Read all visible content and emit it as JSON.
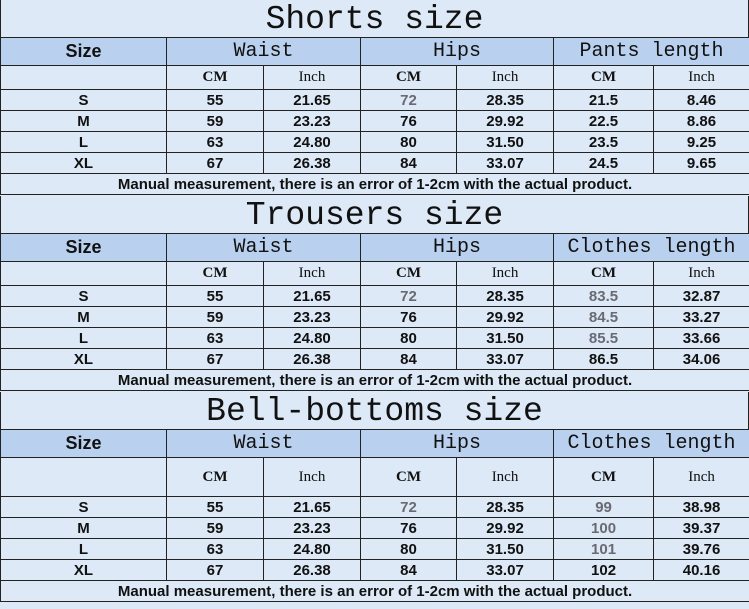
{
  "sections": [
    {
      "title": "Shorts size",
      "headers": {
        "size": "Size",
        "waist": "Waist",
        "hips": "Hips",
        "length": "Pants length"
      },
      "units": [
        "CM",
        "Inch",
        "CM",
        "Inch",
        "CM",
        "Inch"
      ],
      "rows": [
        [
          "S",
          "55",
          "21.65",
          "72",
          "28.35",
          "21.5",
          "8.46"
        ],
        [
          "M",
          "59",
          "23.23",
          "76",
          "29.92",
          "22.5",
          "8.86"
        ],
        [
          "L",
          "63",
          "24.80",
          "80",
          "31.50",
          "23.5",
          "9.25"
        ],
        [
          "XL",
          "67",
          "26.38",
          "84",
          "33.07",
          "24.5",
          "9.65"
        ]
      ],
      "muted_cells": [
        [
          0,
          3
        ]
      ],
      "note": "Manual measurement, there is an error of 1-2cm with the actual product."
    },
    {
      "title": "Trousers size",
      "headers": {
        "size": "Size",
        "waist": "Waist",
        "hips": "Hips",
        "length": "Clothes length"
      },
      "units": [
        "CM",
        "Inch",
        "CM",
        "Inch",
        "CM",
        "Inch"
      ],
      "rows": [
        [
          "S",
          "55",
          "21.65",
          "72",
          "28.35",
          "83.5",
          "32.87"
        ],
        [
          "M",
          "59",
          "23.23",
          "76",
          "29.92",
          "84.5",
          "33.27"
        ],
        [
          "L",
          "63",
          "24.80",
          "80",
          "31.50",
          "85.5",
          "33.66"
        ],
        [
          "XL",
          "67",
          "26.38",
          "84",
          "33.07",
          "86.5",
          "34.06"
        ]
      ],
      "muted_cells": [
        [
          0,
          3
        ],
        [
          0,
          5
        ],
        [
          1,
          5
        ],
        [
          2,
          5
        ]
      ],
      "note": "Manual measurement, there is an error of 1-2cm with the actual product."
    },
    {
      "title": "Bell-bottoms size",
      "headers": {
        "size": "Size",
        "waist": "Waist",
        "hips": "Hips",
        "length": "Clothes length"
      },
      "units": [
        "CM",
        "Inch",
        "CM",
        "Inch",
        "CM",
        "Inch"
      ],
      "rows": [
        [
          "S",
          "55",
          "21.65",
          "72",
          "28.35",
          "99",
          "38.98"
        ],
        [
          "M",
          "59",
          "23.23",
          "76",
          "29.92",
          "100",
          "39.37"
        ],
        [
          "L",
          "63",
          "24.80",
          "80",
          "31.50",
          "101",
          "39.76"
        ],
        [
          "XL",
          "67",
          "26.38",
          "84",
          "33.07",
          "102",
          "40.16"
        ]
      ],
      "muted_cells": [
        [
          0,
          3
        ],
        [
          0,
          5
        ],
        [
          1,
          5
        ],
        [
          2,
          5
        ]
      ],
      "note": "Manual measurement, there is an error of 1-2cm with the actual product."
    }
  ]
}
